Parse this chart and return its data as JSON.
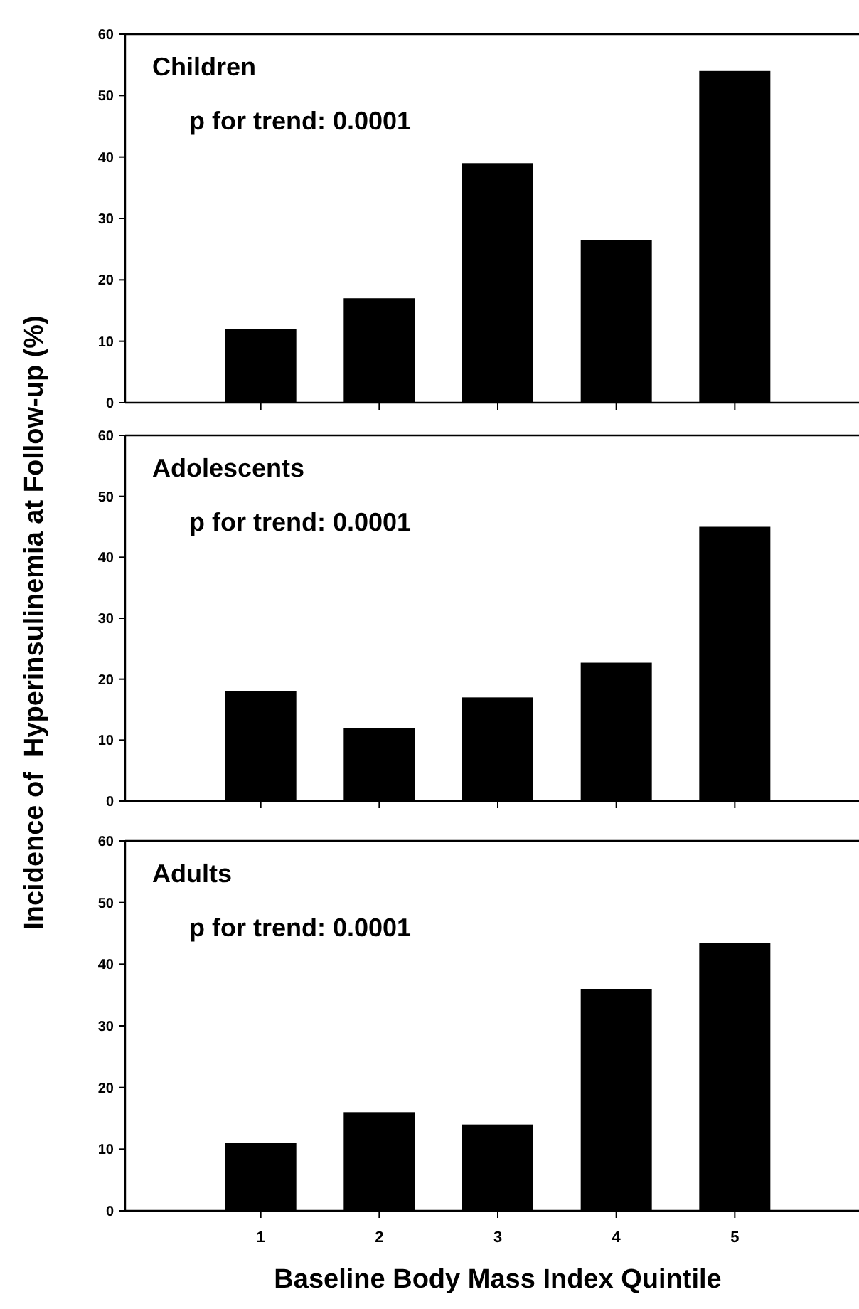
{
  "chart_data": [
    {
      "type": "bar",
      "title": "Children",
      "annotations": [
        "p for trend: 0.0001"
      ],
      "categories": [
        "1",
        "2",
        "3",
        "4",
        "5"
      ],
      "values": [
        12,
        17,
        39,
        26.5,
        54
      ],
      "color": "#000000",
      "ylim": [
        0,
        60
      ],
      "yticks": [
        0,
        10,
        20,
        30,
        40,
        50,
        60
      ],
      "tick_labels": "y",
      "grid": false
    },
    {
      "type": "bar",
      "title": "Adolescents",
      "ylabel": "Incidence of  Hyperinsulinemia at Follow-up (%)",
      "annotations": [
        "p for trend: 0.0001"
      ],
      "categories": [
        "1",
        "2",
        "3",
        "4",
        "5"
      ],
      "values": [
        18,
        12,
        17,
        22.7,
        45
      ],
      "color": "#000000",
      "ylim": [
        0,
        60
      ],
      "yticks": [
        0,
        10,
        20,
        30,
        40,
        50,
        60
      ],
      "tick_labels": "y",
      "grid": false
    },
    {
      "type": "bar",
      "title": "Adults",
      "xlabel": "Baseline Body Mass Index Quintile",
      "annotations": [
        "p for trend: 0.0001"
      ],
      "categories": [
        "1",
        "2",
        "3",
        "4",
        "5"
      ],
      "values": [
        11,
        16,
        14,
        36,
        43.5
      ],
      "color": "#000000",
      "ylim": [
        0,
        60
      ],
      "yticks": [
        0,
        10,
        20,
        30,
        40,
        50,
        60
      ],
      "grid": false
    }
  ]
}
